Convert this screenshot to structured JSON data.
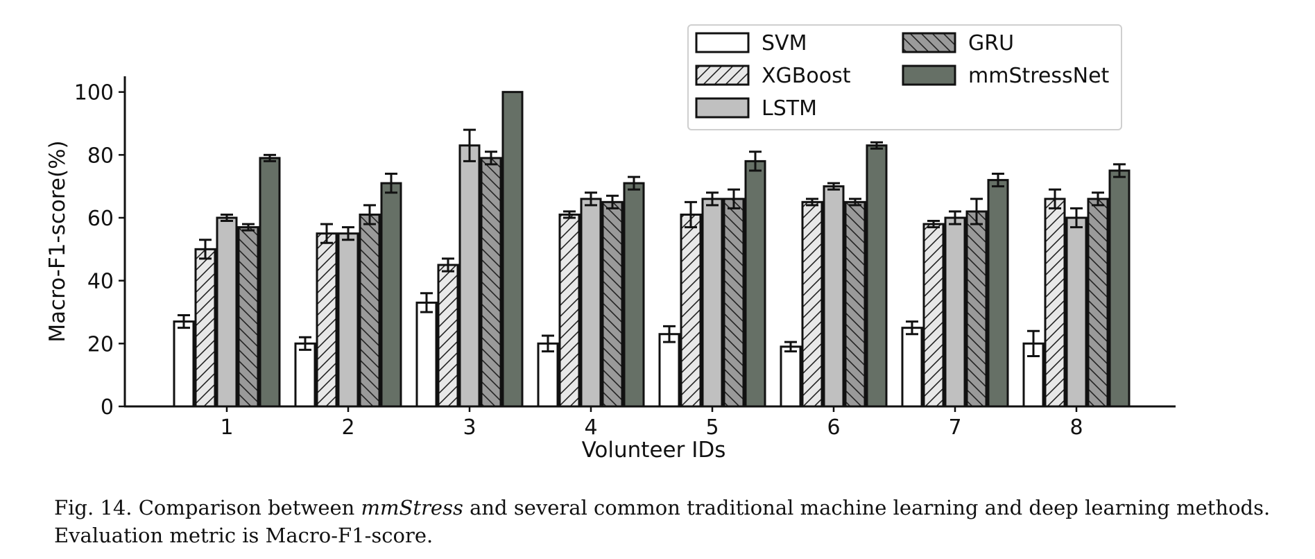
{
  "chart_data": {
    "type": "bar",
    "xlabel": "Volunteer IDs",
    "ylabel": "Macro-F1-score(%)",
    "ylim": [
      0,
      105
    ],
    "yticks": [
      0,
      20,
      40,
      60,
      80,
      100
    ],
    "categories": [
      "1",
      "2",
      "3",
      "4",
      "5",
      "6",
      "7",
      "8"
    ],
    "legend": {
      "placement": "top-right",
      "columns": 2
    },
    "grid": false,
    "series": [
      {
        "name": "SVM",
        "color": "#ffffff",
        "hatch": "none",
        "values": [
          27,
          20,
          33,
          20,
          23,
          19,
          25,
          20
        ],
        "errors": [
          2,
          2,
          3,
          2.5,
          2.5,
          1.5,
          2,
          4
        ]
      },
      {
        "name": "XGBoost",
        "color": "#e8e8e8",
        "hatch": "forward",
        "values": [
          50,
          55,
          45,
          61,
          61,
          65,
          58,
          66
        ],
        "errors": [
          3,
          3,
          2,
          1,
          4,
          1,
          1,
          3
        ]
      },
      {
        "name": "LSTM",
        "color": "#c0c0c0",
        "hatch": "none",
        "values": [
          60,
          55,
          83,
          66,
          66,
          70,
          60,
          60
        ],
        "errors": [
          1,
          2,
          5,
          2,
          2,
          1,
          2,
          3
        ]
      },
      {
        "name": "GRU",
        "color": "#9a9a9a",
        "hatch": "back",
        "values": [
          57,
          61,
          79,
          65,
          66,
          65,
          62,
          66
        ],
        "errors": [
          1,
          3,
          2,
          2,
          3,
          1,
          4,
          2
        ]
      },
      {
        "name": "mmStressNet",
        "color": "#667066",
        "hatch": "none",
        "values": [
          79,
          71,
          100,
          71,
          78,
          83,
          72,
          75
        ],
        "errors": [
          1,
          3,
          0,
          2,
          3,
          1,
          2,
          2
        ]
      }
    ]
  },
  "caption": {
    "prefix": "Fig. 14.  Comparison between ",
    "emphasis": "mmStress",
    "suffix": " and several common traditional machine learning and deep learning methods.",
    "line2": "Evaluation metric is Macro-F1-score."
  }
}
